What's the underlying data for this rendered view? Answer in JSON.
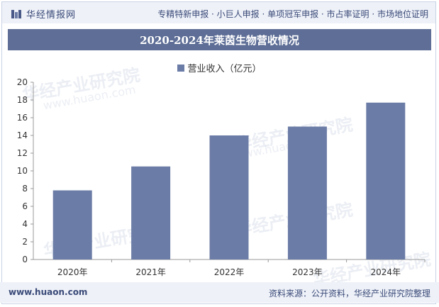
{
  "header": {
    "logo_text": "华经情报网",
    "links": "专精特新申报 · 小巨人申报 · 单项冠军申报 · 市占率证明 · 市场地位证明"
  },
  "chart_data": {
    "type": "bar",
    "title": "2020-2024年莱茵生物营收情况",
    "categories": [
      "2020年",
      "2021年",
      "2022年",
      "2023年",
      "2024年"
    ],
    "series": [
      {
        "name": "营业收入（亿元）",
        "values": [
          7.8,
          10.5,
          14.0,
          15.0,
          17.7
        ]
      }
    ],
    "ylim": [
      0,
      20
    ],
    "yticks": [
      0,
      2,
      4,
      6,
      8,
      10,
      12,
      14,
      16,
      18,
      20
    ],
    "bar_color": "#6b7ca6",
    "legend_position": "top-center",
    "grid": false
  },
  "watermark": {
    "text": "华经产业研究院",
    "url": "www.huaon.com"
  },
  "footer": {
    "url": "www.huaon.com",
    "source": "资料来源：公开资料，华经产业研究院整理"
  },
  "colors": {
    "accent": "#5e6e96",
    "band": "#eef1f8"
  }
}
